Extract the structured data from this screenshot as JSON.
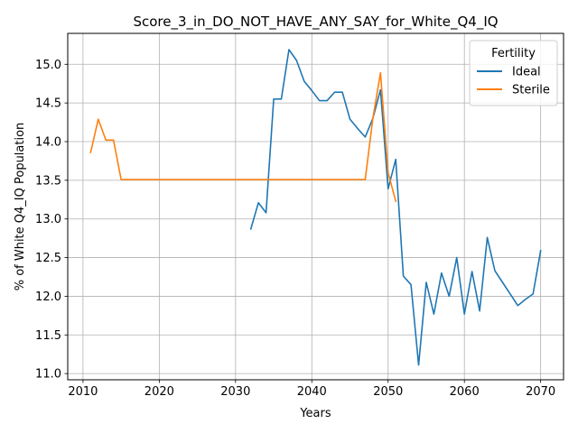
{
  "chart_data": {
    "type": "line",
    "title": "Score_3_in_DO_NOT_HAVE_ANY_SAY_for_White_Q4_IQ",
    "xlabel": "Years",
    "ylabel": "% of White Q4_IQ Population",
    "xlim": [
      2008,
      2073
    ],
    "ylim": [
      10.92,
      15.4
    ],
    "xticks": [
      2010,
      2020,
      2030,
      2040,
      2050,
      2060,
      2070
    ],
    "yticks": [
      11.0,
      11.5,
      12.0,
      12.5,
      13.0,
      13.5,
      14.0,
      14.5,
      15.0
    ],
    "xtick_labels": [
      "2010",
      "2020",
      "2030",
      "2040",
      "2050",
      "2060",
      "2070"
    ],
    "ytick_labels": [
      "11.0",
      "11.5",
      "12.0",
      "12.5",
      "13.0",
      "13.5",
      "14.0",
      "14.5",
      "15.0"
    ],
    "grid": true,
    "legend": {
      "title": "Fertility",
      "position": "top-right"
    },
    "series": [
      {
        "name": "Ideal",
        "color": "#1f77b4",
        "x": [
          2032,
          2033,
          2034,
          2035,
          2036,
          2037,
          2038,
          2039,
          2040,
          2041,
          2042,
          2043,
          2044,
          2045,
          2046,
          2047,
          2048,
          2049,
          2050,
          2051,
          2052,
          2053,
          2054,
          2055,
          2056,
          2057,
          2058,
          2059,
          2060,
          2061,
          2062,
          2063,
          2064,
          2065,
          2066,
          2067,
          2068,
          2069,
          2070
        ],
        "y": [
          12.87,
          13.21,
          13.08,
          14.55,
          14.55,
          15.19,
          15.05,
          14.78,
          14.66,
          14.53,
          14.53,
          14.64,
          14.64,
          14.29,
          14.17,
          14.06,
          14.3,
          14.67,
          13.39,
          13.77,
          12.26,
          12.15,
          11.11,
          12.18,
          11.77,
          12.3,
          12.0,
          12.5,
          11.77,
          12.32,
          11.81,
          12.76,
          12.33,
          12.18,
          12.03,
          11.88,
          11.96,
          12.03,
          12.59
        ]
      },
      {
        "name": "Sterile",
        "color": "#ff7f0e",
        "x": [
          2011,
          2012,
          2013,
          2014,
          2015,
          2016,
          2017,
          2018,
          2019,
          2020,
          2021,
          2022,
          2023,
          2024,
          2025,
          2026,
          2027,
          2028,
          2029,
          2030,
          2031,
          2032,
          2033,
          2034,
          2035,
          2036,
          2037,
          2038,
          2039,
          2040,
          2041,
          2042,
          2043,
          2044,
          2045,
          2046,
          2047,
          2048,
          2049,
          2050,
          2051
        ],
        "y": [
          13.86,
          14.29,
          14.02,
          14.02,
          13.51,
          13.51,
          13.51,
          13.51,
          13.51,
          13.51,
          13.51,
          13.51,
          13.51,
          13.51,
          13.51,
          13.51,
          13.51,
          13.51,
          13.51,
          13.51,
          13.51,
          13.51,
          13.51,
          13.51,
          13.51,
          13.51,
          13.51,
          13.51,
          13.51,
          13.51,
          13.51,
          13.51,
          13.51,
          13.51,
          13.51,
          13.51,
          13.51,
          14.3,
          14.89,
          13.6,
          13.23
        ]
      }
    ]
  }
}
